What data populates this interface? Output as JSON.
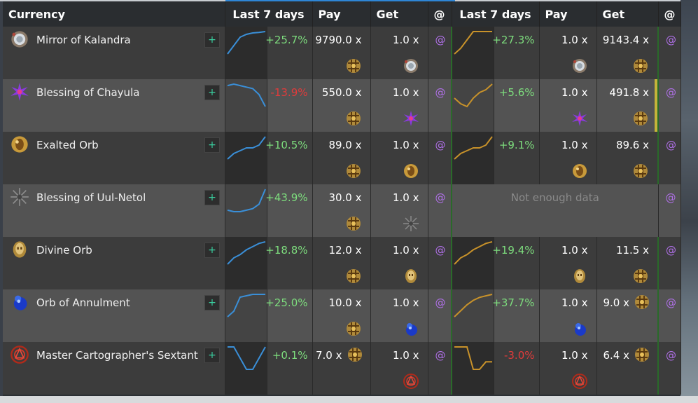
{
  "header": {
    "currency": "Currency",
    "last7_left": "Last 7 days",
    "pay_left": "Pay",
    "get_left": "Get",
    "at_left": "@",
    "last7_right": "Last 7 days",
    "pay_right": "Pay",
    "get_right": "Get",
    "at_right": "@"
  },
  "rows": [
    {
      "name": "Mirror of Kalandra",
      "icon": "mirror-icon",
      "plus": "+",
      "left_trend": "+25.7%",
      "left_trend_dir": "pos",
      "left_spark": [
        2,
        5,
        8,
        9,
        9.5,
        9.7,
        10
      ],
      "left_pay": "9790.0 x",
      "left_get": "1.0 x",
      "at": "@",
      "right_spark": [
        2,
        4,
        7,
        10,
        10,
        10,
        10
      ],
      "right_trend": "+27.3%",
      "right_trend_dir": "pos",
      "right_pay": "1.0 x",
      "right_get": "9143.4 x"
    },
    {
      "name": "Blessing of Chayula",
      "icon": "chayula-icon",
      "plus": "+",
      "left_trend": "-13.9%",
      "left_trend_dir": "neg",
      "left_spark": [
        9,
        9.5,
        9,
        8.5,
        8,
        6,
        2
      ],
      "left_pay": "550.0 x",
      "left_get": "1.0 x",
      "at": "@",
      "right_spark": [
        5,
        3,
        2,
        5,
        7,
        8,
        10
      ],
      "right_trend": "+5.6%",
      "right_trend_dir": "pos",
      "right_pay": "1.0 x",
      "right_get": "491.8 x"
    },
    {
      "name": "Exalted Orb",
      "icon": "exalted-orb-icon",
      "plus": "+",
      "left_trend": "+10.5%",
      "left_trend_dir": "pos",
      "left_spark": [
        5,
        6,
        6.5,
        7,
        7,
        7.5,
        9
      ],
      "left_pay": "89.0 x",
      "left_get": "1.0 x",
      "at": "@",
      "right_spark": [
        5,
        6,
        6.5,
        7,
        7,
        7.5,
        9
      ],
      "right_trend": "+9.1%",
      "right_trend_dir": "pos",
      "right_pay": "1.0 x",
      "right_get": "89.6 x"
    },
    {
      "name": "Blessing of Uul-Netol",
      "icon": "uul-netol-icon",
      "plus": "+",
      "left_trend": "+43.9%",
      "left_trend_dir": "pos",
      "left_spark": [
        2,
        1.5,
        1.5,
        2,
        2.5,
        4,
        9
      ],
      "left_pay": "30.0 x",
      "left_get": "1.0 x",
      "at": "@",
      "right_nodata": "Not enough data"
    },
    {
      "name": "Divine Orb",
      "icon": "divine-orb-icon",
      "plus": "+",
      "left_trend": "+18.8%",
      "left_trend_dir": "pos",
      "left_spark": [
        2,
        4,
        5,
        6.5,
        7.5,
        8.5,
        9
      ],
      "left_pay": "12.0 x",
      "left_get": "1.0 x",
      "at": "@",
      "right_spark": [
        2,
        4,
        5,
        6.5,
        7.5,
        8.5,
        9
      ],
      "right_trend": "+19.4%",
      "right_trend_dir": "pos",
      "right_pay": "1.0 x",
      "right_get": "11.5 x"
    },
    {
      "name": "Orb of Annulment",
      "icon": "annulment-orb-icon",
      "plus": "+",
      "left_trend": "+25.0%",
      "left_trend_dir": "pos",
      "left_spark": [
        1,
        3,
        8,
        8.5,
        9,
        9,
        9
      ],
      "left_pay": "10.0 x",
      "left_get": "1.0 x",
      "at": "@",
      "right_spark": [
        2,
        4,
        6,
        7.5,
        8.5,
        9,
        9.5
      ],
      "right_trend": "+37.7%",
      "right_trend_dir": "pos",
      "right_pay": "1.0 x",
      "right_get": "9.0 x"
    },
    {
      "name": "Master Cartographer's Sextant",
      "icon": "sextant-icon",
      "plus": "+",
      "left_trend": "+0.1%",
      "left_trend_dir": "pos",
      "left_spark": [
        7,
        7,
        5,
        3,
        3,
        5,
        7
      ],
      "left_pay": "7.0 x",
      "left_get": "1.0 x",
      "at": "@",
      "right_spark": [
        7,
        7,
        7,
        4,
        4,
        5,
        5
      ],
      "right_trend": "-3.0%",
      "right_trend_dir": "neg",
      "right_pay": "1.0 x",
      "right_get": "6.4 x"
    }
  ],
  "colors": {
    "left_spark": "#3a8fd8",
    "right_spark": "#c8922a",
    "positive": "#7ddc7d",
    "negative": "#e03b3b"
  }
}
